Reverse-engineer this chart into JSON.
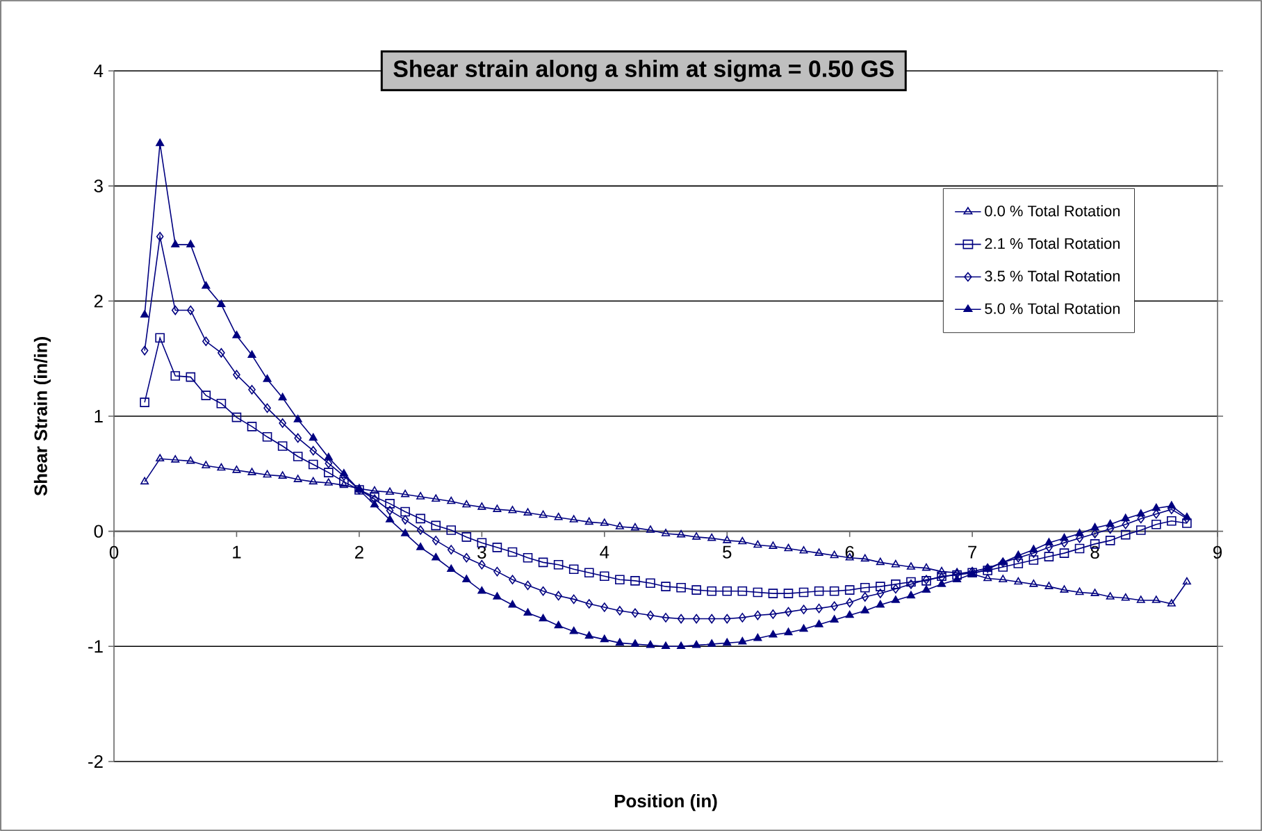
{
  "chart_data": {
    "type": "line",
    "title": "Shear strain along a shim at sigma = 0.50 GS",
    "xlabel": "Position (in)",
    "ylabel": "Shear Strain (in/in)",
    "x": [
      0.25,
      0.375,
      0.5,
      0.625,
      0.75,
      0.875,
      1.0,
      1.125,
      1.25,
      1.375,
      1.5,
      1.625,
      1.75,
      1.875,
      2.0,
      2.125,
      2.25,
      2.375,
      2.5,
      2.625,
      2.75,
      2.875,
      3.0,
      3.125,
      3.25,
      3.375,
      3.5,
      3.625,
      3.75,
      3.875,
      4.0,
      4.125,
      4.25,
      4.375,
      4.5,
      4.625,
      4.75,
      4.875,
      5.0,
      5.125,
      5.25,
      5.375,
      5.5,
      5.625,
      5.75,
      5.875,
      6.0,
      6.125,
      6.25,
      6.375,
      6.5,
      6.625,
      6.75,
      6.875,
      7.0,
      7.125,
      7.25,
      7.375,
      7.5,
      7.625,
      7.75,
      7.875,
      8.0,
      8.125,
      8.25,
      8.375,
      8.5,
      8.625,
      8.75
    ],
    "series": [
      {
        "name": "0.0 % Total Rotation",
        "color": "#000080",
        "marker": "triangle",
        "values": [
          0.43,
          0.63,
          0.62,
          0.61,
          0.57,
          0.55,
          0.53,
          0.51,
          0.49,
          0.48,
          0.45,
          0.43,
          0.42,
          0.4,
          0.37,
          0.35,
          0.34,
          0.32,
          0.3,
          0.28,
          0.26,
          0.23,
          0.21,
          0.19,
          0.18,
          0.16,
          0.14,
          0.12,
          0.1,
          0.08,
          0.07,
          0.04,
          0.03,
          0.01,
          -0.02,
          -0.03,
          -0.05,
          -0.06,
          -0.08,
          -0.09,
          -0.12,
          -0.13,
          -0.15,
          -0.17,
          -0.19,
          -0.21,
          -0.23,
          -0.24,
          -0.27,
          -0.29,
          -0.31,
          -0.32,
          -0.35,
          -0.36,
          -0.37,
          -0.41,
          -0.42,
          -0.44,
          -0.46,
          -0.48,
          -0.51,
          -0.53,
          -0.54,
          -0.57,
          -0.58,
          -0.6,
          -0.6,
          -0.63,
          -0.44
        ]
      },
      {
        "name": "2.1 % Total Rotation",
        "color": "#000080",
        "marker": "square",
        "values": [
          1.12,
          1.68,
          1.35,
          1.34,
          1.18,
          1.11,
          0.99,
          0.91,
          0.82,
          0.74,
          0.65,
          0.58,
          0.51,
          0.43,
          0.36,
          0.3,
          0.24,
          0.17,
          0.11,
          0.05,
          0.01,
          -0.05,
          -0.1,
          -0.14,
          -0.18,
          -0.23,
          -0.27,
          -0.29,
          -0.33,
          -0.36,
          -0.39,
          -0.42,
          -0.43,
          -0.45,
          -0.48,
          -0.49,
          -0.51,
          -0.52,
          -0.52,
          -0.52,
          -0.53,
          -0.54,
          -0.54,
          -0.53,
          -0.52,
          -0.52,
          -0.51,
          -0.49,
          -0.48,
          -0.46,
          -0.44,
          -0.43,
          -0.39,
          -0.38,
          -0.36,
          -0.34,
          -0.31,
          -0.28,
          -0.25,
          -0.22,
          -0.19,
          -0.15,
          -0.11,
          -0.08,
          -0.03,
          0.01,
          0.06,
          0.09,
          0.07
        ]
      },
      {
        "name": "3.5 % Total Rotation",
        "color": "#000080",
        "marker": "diamond",
        "values": [
          1.57,
          2.56,
          1.92,
          1.92,
          1.65,
          1.55,
          1.36,
          1.23,
          1.07,
          0.94,
          0.81,
          0.7,
          0.59,
          0.48,
          0.36,
          0.28,
          0.18,
          0.1,
          0.01,
          -0.08,
          -0.16,
          -0.23,
          -0.29,
          -0.35,
          -0.42,
          -0.47,
          -0.52,
          -0.56,
          -0.59,
          -0.63,
          -0.66,
          -0.69,
          -0.71,
          -0.73,
          -0.75,
          -0.76,
          -0.76,
          -0.76,
          -0.76,
          -0.75,
          -0.73,
          -0.72,
          -0.7,
          -0.68,
          -0.67,
          -0.65,
          -0.62,
          -0.57,
          -0.54,
          -0.5,
          -0.46,
          -0.42,
          -0.4,
          -0.37,
          -0.35,
          -0.32,
          -0.27,
          -0.23,
          -0.19,
          -0.14,
          -0.1,
          -0.06,
          -0.02,
          0.02,
          0.06,
          0.11,
          0.15,
          0.19,
          0.11
        ]
      },
      {
        "name": "5.0 % Total Rotation",
        "color": "#000080",
        "marker": "triangle-filled",
        "values": [
          1.88,
          3.37,
          2.49,
          2.49,
          2.13,
          1.97,
          1.7,
          1.53,
          1.32,
          1.16,
          0.97,
          0.81,
          0.64,
          0.5,
          0.36,
          0.23,
          0.1,
          -0.02,
          -0.14,
          -0.23,
          -0.33,
          -0.42,
          -0.52,
          -0.57,
          -0.64,
          -0.71,
          -0.76,
          -0.82,
          -0.87,
          -0.91,
          -0.94,
          -0.97,
          -0.98,
          -0.99,
          -1.0,
          -1.0,
          -0.99,
          -0.98,
          -0.97,
          -0.96,
          -0.93,
          -0.9,
          -0.88,
          -0.85,
          -0.81,
          -0.77,
          -0.73,
          -0.69,
          -0.64,
          -0.6,
          -0.56,
          -0.51,
          -0.46,
          -0.42,
          -0.37,
          -0.33,
          -0.27,
          -0.21,
          -0.16,
          -0.1,
          -0.06,
          -0.02,
          0.03,
          0.06,
          0.11,
          0.15,
          0.2,
          0.22,
          0.12
        ]
      }
    ],
    "xlim": [
      0,
      9
    ],
    "xticks": [
      0,
      1,
      2,
      3,
      4,
      5,
      6,
      7,
      8,
      9
    ],
    "ylim": [
      -2,
      4
    ],
    "yticks": [
      -2,
      -1,
      0,
      1,
      2,
      3,
      4
    ],
    "grid": "y",
    "legend": "top right",
    "line_style": "solid"
  }
}
